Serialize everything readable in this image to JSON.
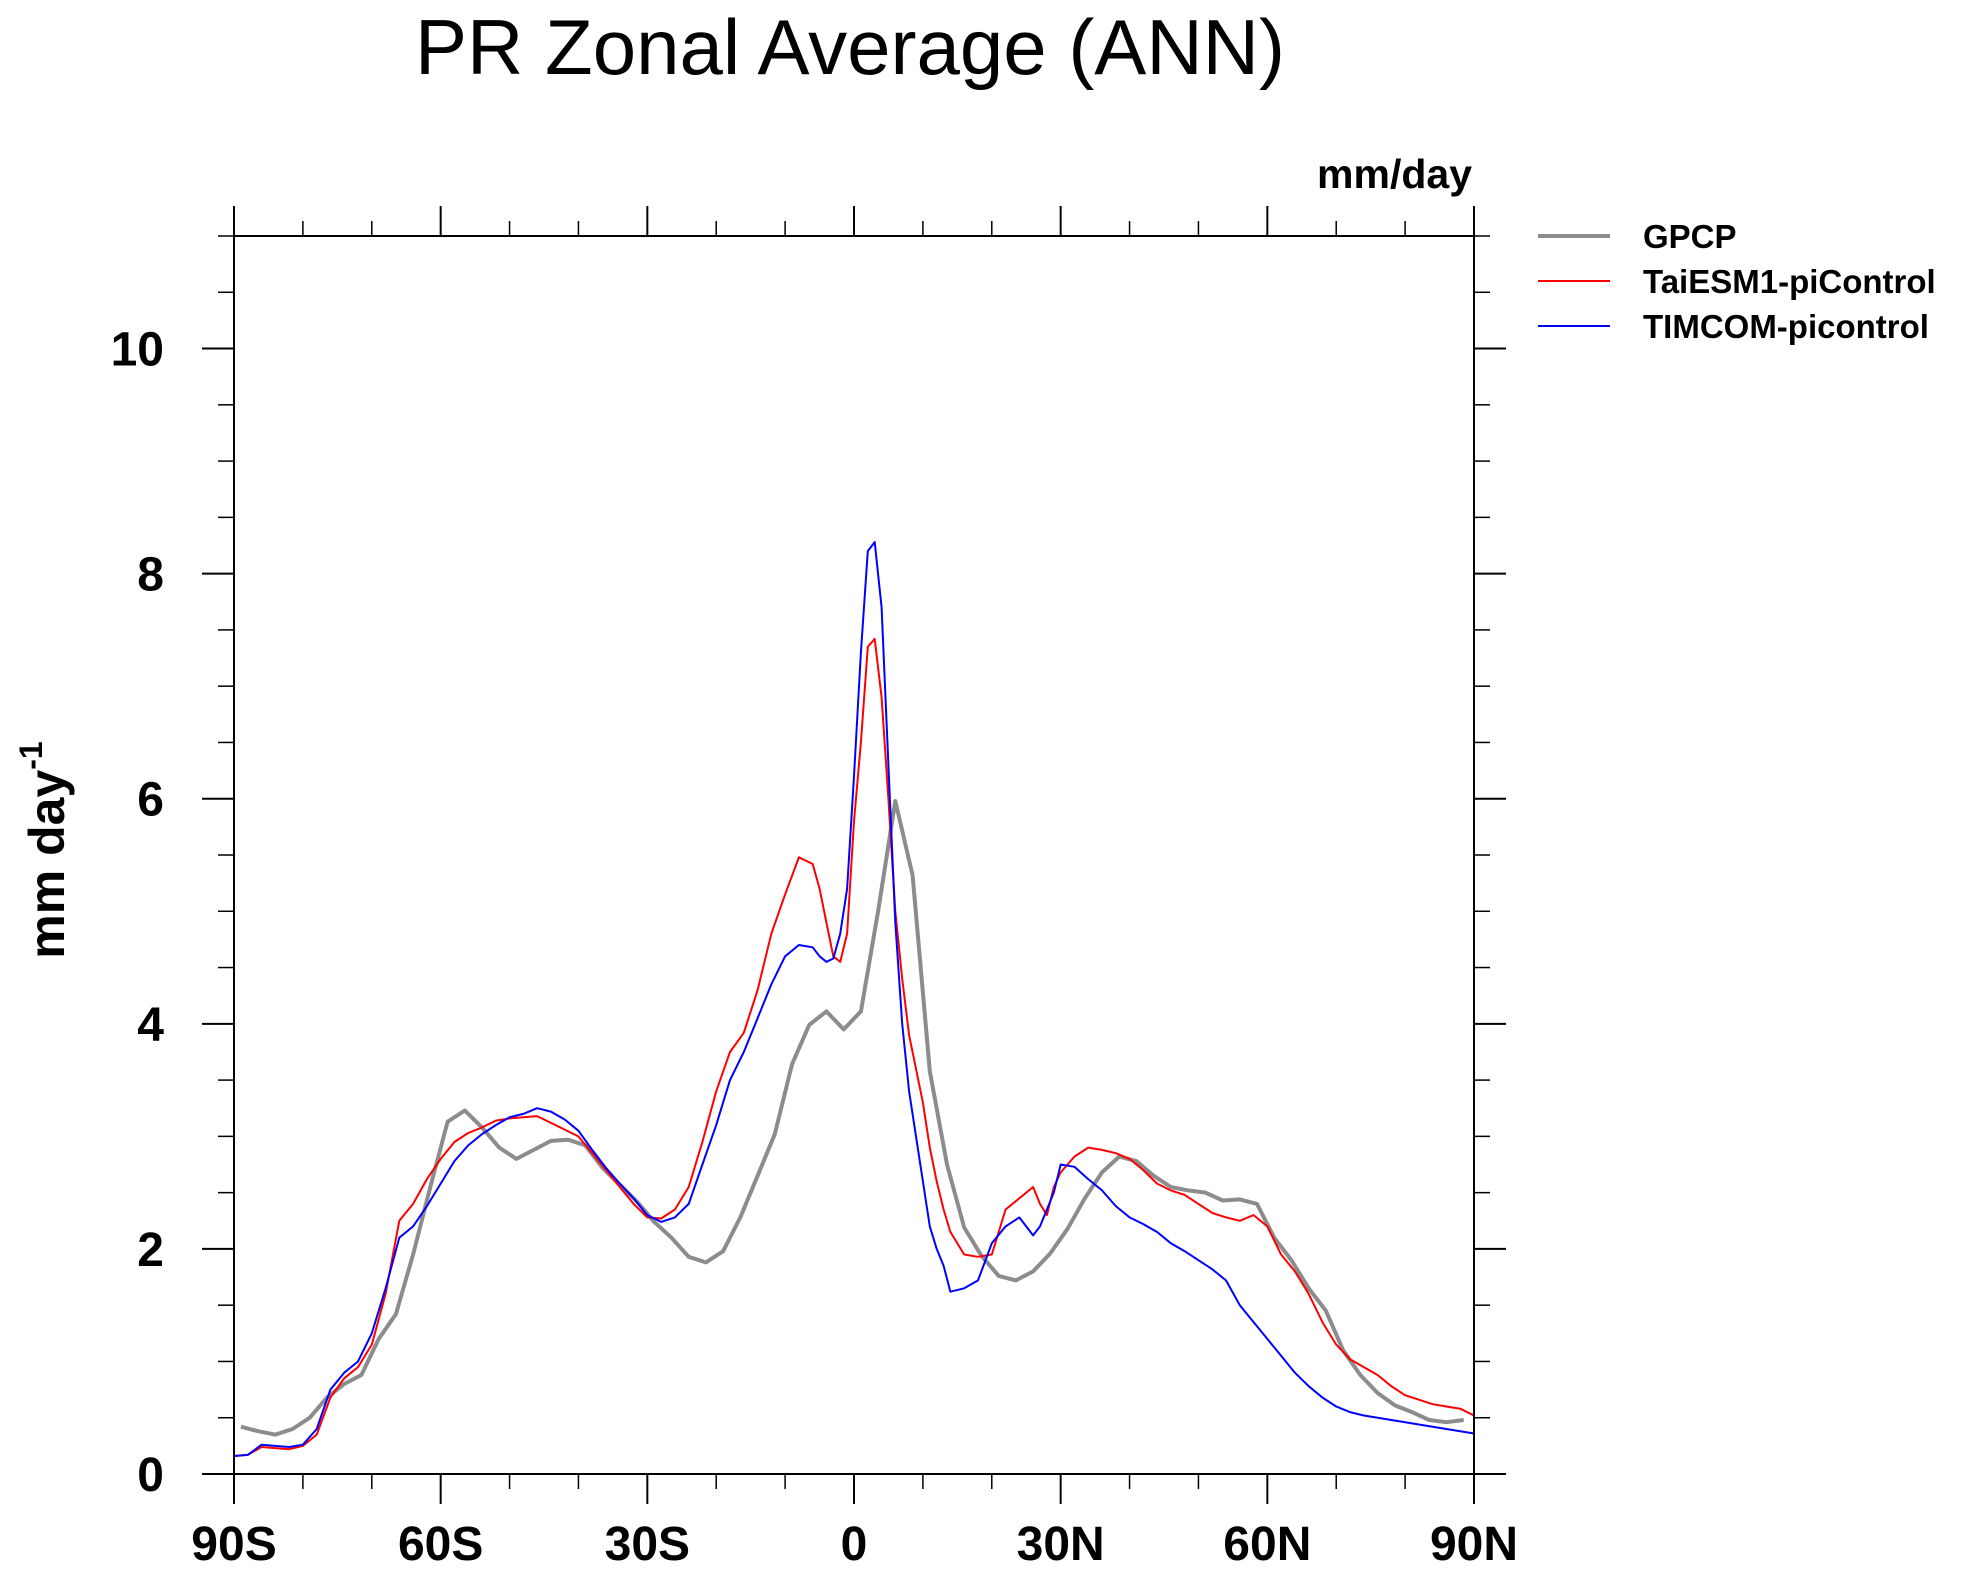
{
  "chart_data": {
    "type": "line",
    "title": "PR Zonal Average (ANN)",
    "units_label": "mm/day",
    "ylabel_main": "mm day",
    "ylabel_sup": "-1",
    "xlim": [
      -90,
      90
    ],
    "ylim": [
      0,
      11
    ],
    "x_ticks": [
      {
        "value": -90,
        "label": "90S"
      },
      {
        "value": -60,
        "label": "60S"
      },
      {
        "value": -30,
        "label": "30S"
      },
      {
        "value": 0,
        "label": "0"
      },
      {
        "value": 30,
        "label": "30N"
      },
      {
        "value": 60,
        "label": "60N"
      },
      {
        "value": 90,
        "label": "90N"
      }
    ],
    "y_ticks": [
      {
        "value": 0,
        "label": "0"
      },
      {
        "value": 2,
        "label": "2"
      },
      {
        "value": 4,
        "label": "4"
      },
      {
        "value": 6,
        "label": "6"
      },
      {
        "value": 8,
        "label": "8"
      },
      {
        "value": 10,
        "label": "10"
      }
    ],
    "legend_position": "right, outside plot, top",
    "grid": false,
    "series": [
      {
        "name": "GPCP",
        "color": "#8c8c8c",
        "x": [
          -89,
          -86.5,
          -84,
          -81.5,
          -79,
          -76.5,
          -74,
          -71.5,
          -69,
          -66.5,
          -64,
          -61.5,
          -59,
          -56.5,
          -54,
          -51.5,
          -49,
          -46.5,
          -44,
          -41.5,
          -39,
          -36.5,
          -34,
          -31.5,
          -29,
          -26.5,
          -24,
          -21.5,
          -19,
          -16.5,
          -14,
          -11.5,
          -9,
          -6.5,
          -4,
          -1.5,
          1,
          3.5,
          6,
          8.5,
          11,
          13.5,
          16,
          18.5,
          21,
          23.5,
          26,
          28.5,
          31,
          33.5,
          36,
          38.5,
          41,
          43.5,
          46,
          48.5,
          51,
          53.5,
          56,
          58.5,
          61,
          63.5,
          66,
          68.5,
          71,
          73.5,
          76,
          78.5,
          81,
          83.5,
          86,
          88.5
        ],
        "values": [
          0.42,
          0.38,
          0.35,
          0.4,
          0.5,
          0.68,
          0.8,
          0.88,
          1.2,
          1.42,
          1.95,
          2.55,
          3.13,
          3.23,
          3.08,
          2.9,
          2.8,
          2.88,
          2.96,
          2.97,
          2.92,
          2.72,
          2.57,
          2.42,
          2.24,
          2.1,
          1.93,
          1.88,
          1.98,
          2.28,
          2.65,
          3.02,
          3.64,
          3.99,
          4.11,
          3.95,
          4.11,
          5.0,
          5.98,
          5.32,
          3.58,
          2.75,
          2.19,
          1.94,
          1.76,
          1.72,
          1.8,
          1.96,
          2.18,
          2.45,
          2.68,
          2.82,
          2.78,
          2.65,
          2.55,
          2.52,
          2.5,
          2.43,
          2.44,
          2.4,
          2.1,
          1.9,
          1.65,
          1.45,
          1.1,
          0.88,
          0.72,
          0.61,
          0.55,
          0.48,
          0.46,
          0.48
        ]
      },
      {
        "name": "TaiESM1-piControl",
        "color": "#ff0000",
        "x": [
          -90,
          -88,
          -86,
          -84,
          -82,
          -80,
          -78,
          -76,
          -74,
          -72,
          -70,
          -68,
          -66,
          -64,
          -62,
          -60,
          -58,
          -56,
          -54,
          -52,
          -50,
          -48,
          -46,
          -44,
          -42,
          -40,
          -38,
          -36,
          -34,
          -32,
          -30,
          -28,
          -26,
          -24,
          -22,
          -20,
          -18,
          -16,
          -14,
          -12,
          -10,
          -8,
          -6,
          -5,
          -4,
          -3,
          -2,
          -1,
          0,
          1,
          2,
          3,
          4,
          5,
          6,
          7,
          8,
          9,
          10,
          11,
          12,
          13,
          14,
          16,
          18,
          20,
          22,
          24,
          26,
          27,
          28,
          29,
          30,
          32,
          34,
          36,
          38,
          40,
          42,
          44,
          46,
          48,
          50,
          52,
          54,
          56,
          58,
          60,
          62,
          64,
          66,
          68,
          70,
          72,
          74,
          76,
          78,
          80,
          82,
          84,
          86,
          88,
          90
        ],
        "values": [
          0.16,
          0.17,
          0.24,
          0.23,
          0.22,
          0.25,
          0.35,
          0.68,
          0.85,
          0.95,
          1.15,
          1.6,
          2.25,
          2.4,
          2.62,
          2.8,
          2.95,
          3.03,
          3.08,
          3.14,
          3.16,
          3.17,
          3.18,
          3.12,
          3.06,
          3.0,
          2.85,
          2.7,
          2.55,
          2.4,
          2.28,
          2.27,
          2.35,
          2.55,
          2.95,
          3.4,
          3.75,
          3.92,
          4.3,
          4.8,
          5.15,
          5.48,
          5.42,
          5.2,
          4.9,
          4.6,
          4.55,
          4.8,
          5.8,
          6.5,
          7.35,
          7.42,
          6.9,
          6.0,
          5.0,
          4.4,
          3.9,
          3.6,
          3.3,
          2.9,
          2.6,
          2.35,
          2.15,
          1.95,
          1.93,
          1.95,
          2.35,
          2.45,
          2.55,
          2.4,
          2.3,
          2.55,
          2.68,
          2.82,
          2.9,
          2.88,
          2.85,
          2.8,
          2.7,
          2.58,
          2.52,
          2.48,
          2.4,
          2.32,
          2.28,
          2.25,
          2.3,
          2.2,
          1.95,
          1.8,
          1.6,
          1.35,
          1.15,
          1.02,
          0.95,
          0.88,
          0.78,
          0.7,
          0.66,
          0.62,
          0.6,
          0.58,
          0.52
        ]
      },
      {
        "name": "TIMCOM-picontrol",
        "color": "#0000ff",
        "x": [
          -90,
          -88,
          -86,
          -84,
          -82,
          -80,
          -78,
          -76,
          -74,
          -72,
          -70,
          -68,
          -66,
          -64,
          -62,
          -60,
          -58,
          -56,
          -54,
          -52,
          -50,
          -48,
          -46,
          -44,
          -42,
          -40,
          -38,
          -36,
          -34,
          -32,
          -30,
          -28,
          -26,
          -24,
          -22,
          -20,
          -18,
          -16,
          -14,
          -12,
          -10,
          -8,
          -6,
          -5,
          -4,
          -3,
          -2,
          -1,
          0,
          1,
          2,
          3,
          4,
          5,
          6,
          7,
          8,
          9,
          10,
          11,
          12,
          13,
          14,
          16,
          18,
          20,
          22,
          24,
          26,
          27,
          28,
          29,
          30,
          32,
          34,
          36,
          38,
          40,
          42,
          44,
          46,
          48,
          50,
          52,
          54,
          56,
          58,
          60,
          62,
          64,
          66,
          68,
          70,
          72,
          74,
          76,
          78,
          80,
          82,
          84,
          86,
          88,
          90
        ],
        "values": [
          0.16,
          0.17,
          0.26,
          0.25,
          0.24,
          0.26,
          0.4,
          0.75,
          0.9,
          1.0,
          1.25,
          1.65,
          2.1,
          2.2,
          2.38,
          2.58,
          2.78,
          2.92,
          3.02,
          3.1,
          3.17,
          3.2,
          3.25,
          3.22,
          3.15,
          3.05,
          2.88,
          2.72,
          2.58,
          2.45,
          2.3,
          2.24,
          2.28,
          2.4,
          2.75,
          3.1,
          3.5,
          3.75,
          4.05,
          4.35,
          4.6,
          4.7,
          4.68,
          4.6,
          4.55,
          4.58,
          4.8,
          5.2,
          6.2,
          7.3,
          8.2,
          8.28,
          7.7,
          6.3,
          4.9,
          4.0,
          3.4,
          3.0,
          2.6,
          2.2,
          2.0,
          1.85,
          1.62,
          1.65,
          1.72,
          2.05,
          2.2,
          2.28,
          2.12,
          2.2,
          2.35,
          2.5,
          2.75,
          2.73,
          2.62,
          2.52,
          2.38,
          2.28,
          2.22,
          2.15,
          2.05,
          1.98,
          1.9,
          1.82,
          1.72,
          1.5,
          1.35,
          1.2,
          1.05,
          0.9,
          0.78,
          0.68,
          0.6,
          0.55,
          0.52,
          0.5,
          0.48,
          0.46,
          0.44,
          0.42,
          0.4,
          0.38,
          0.36
        ]
      }
    ]
  }
}
